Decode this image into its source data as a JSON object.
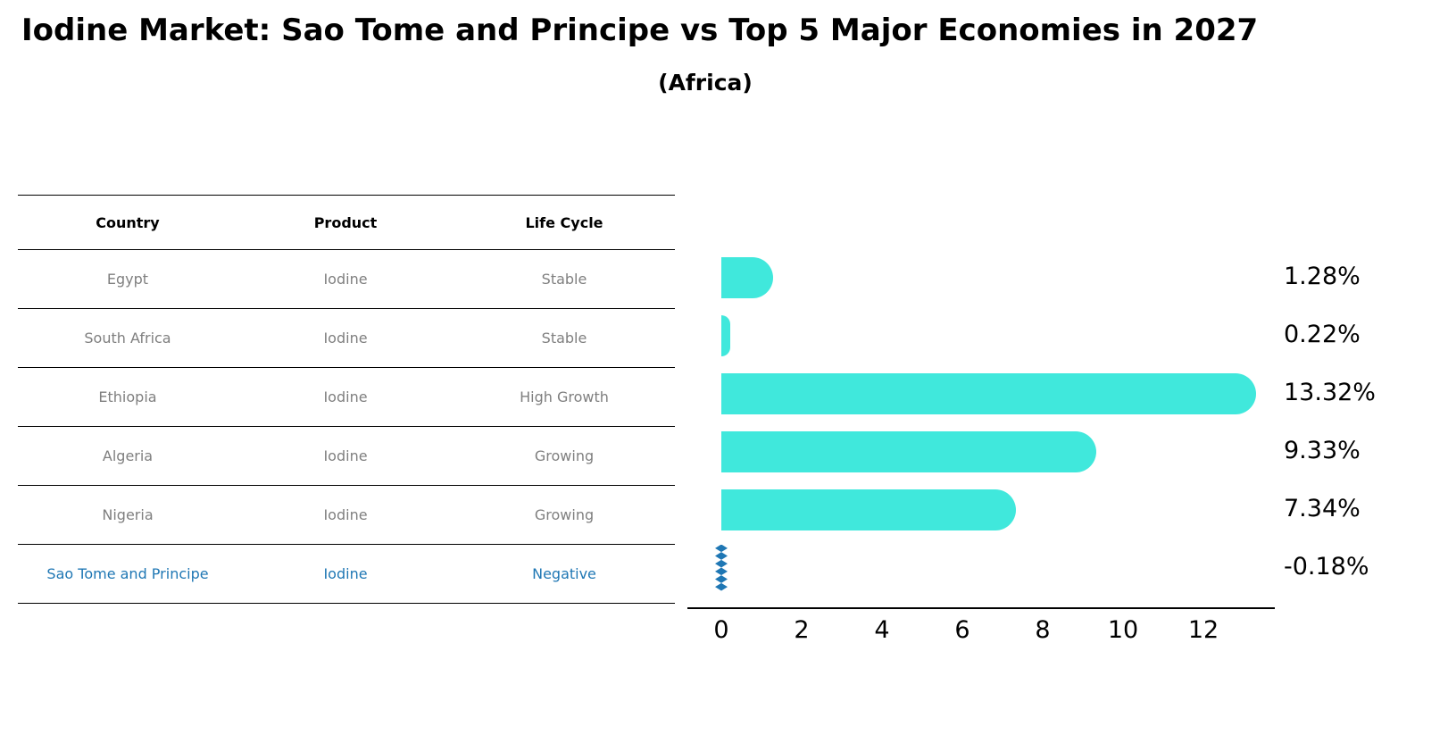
{
  "title": "Iodine Market: Sao Tome and Principe vs Top 5 Major Economies in 2027",
  "subtitle": "(Africa)",
  "table": {
    "headers": [
      "Country",
      "Product",
      "Life Cycle"
    ],
    "rows": [
      {
        "country": "Egypt",
        "product": "Iodine",
        "life_cycle": "Stable",
        "highlight": false
      },
      {
        "country": "South Africa",
        "product": "Iodine",
        "life_cycle": "Stable",
        "highlight": false
      },
      {
        "country": "Ethiopia",
        "product": "Iodine",
        "life_cycle": "High Growth",
        "highlight": false
      },
      {
        "country": "Algeria",
        "product": "Iodine",
        "life_cycle": "Growing",
        "highlight": false
      },
      {
        "country": "Nigeria",
        "product": "Iodine",
        "life_cycle": "Growing",
        "highlight": false
      },
      {
        "country": "Sao Tome and Principe",
        "product": "Iodine",
        "life_cycle": "Negative",
        "highlight": true
      }
    ]
  },
  "chart_data": {
    "type": "bar",
    "orientation": "horizontal",
    "title": "Iodine Market: Sao Tome and Principe vs Top 5 Major Economies in 2027",
    "subtitle": "(Africa)",
    "categories": [
      "Egypt",
      "South Africa",
      "Ethiopia",
      "Algeria",
      "Nigeria",
      "Sao Tome and Principe"
    ],
    "values": [
      1.28,
      0.22,
      13.32,
      9.33,
      7.34,
      -0.18
    ],
    "value_labels": [
      "1.28%",
      "0.22%",
      "13.32%",
      "9.33%",
      "7.34%",
      "-0.18%"
    ],
    "x_ticks": [
      0,
      2,
      4,
      6,
      8,
      10,
      12
    ],
    "xlim": [
      0,
      13.95
    ],
    "grid": false,
    "legend": "none",
    "bar_color": "#40E8DC",
    "negative_bar_color": "#1f77b4",
    "highlight_text_color": "#1f77b4"
  }
}
